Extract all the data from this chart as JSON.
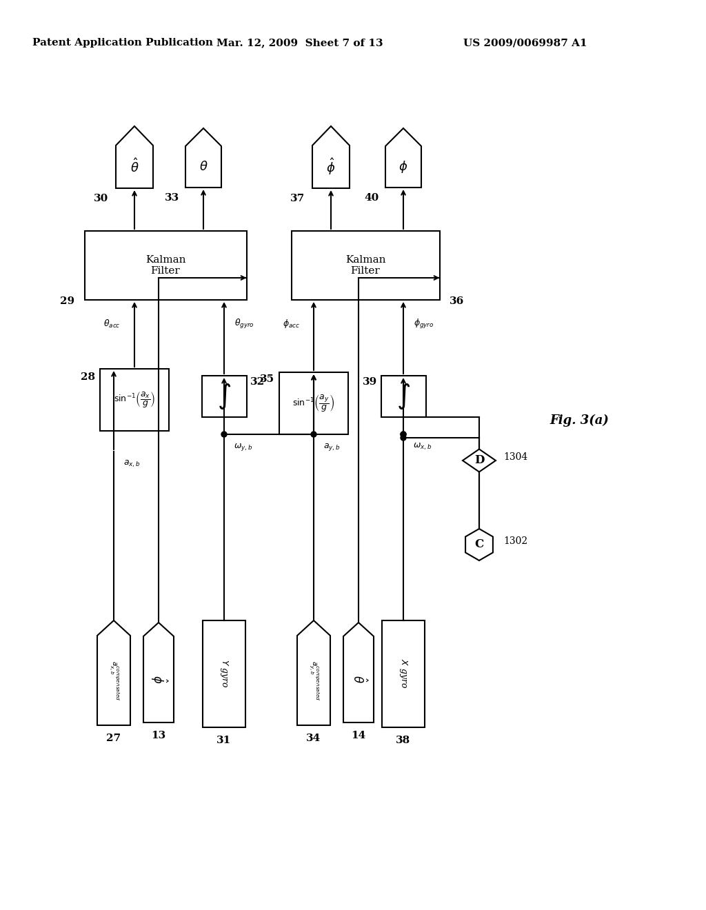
{
  "header_left": "Patent Application Publication",
  "header_mid": "Mar. 12, 2009  Sheet 7 of 13",
  "header_right": "US 2009/0069987 A1",
  "fig_label": "Fig. 3(a)",
  "bg": "#ffffff"
}
